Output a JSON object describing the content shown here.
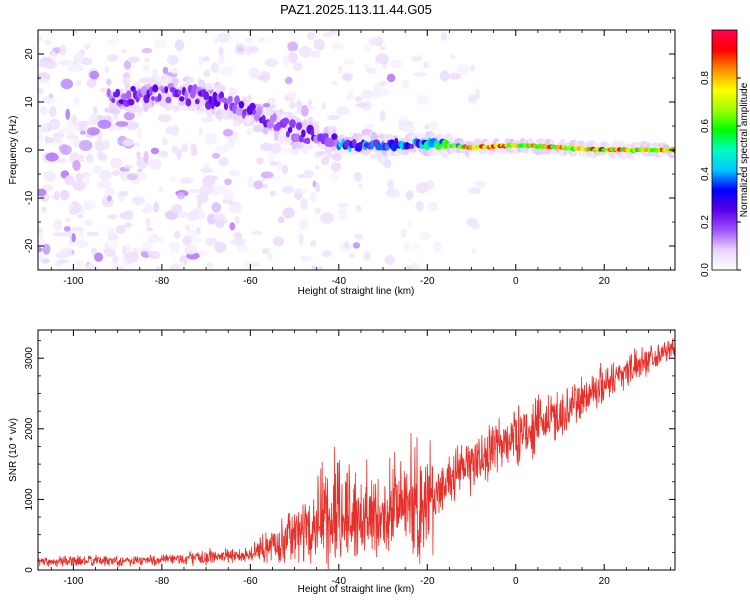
{
  "figure": {
    "title": "PAZ1.2025.113.11.44.G05"
  },
  "chart_data": [
    {
      "type": "heatmap",
      "xlabel": "Height of straight line (km)",
      "ylabel": "Frequency (Hz)",
      "xlim": [
        -108,
        36
      ],
      "ylim": [
        -25,
        25
      ],
      "xticks": [
        -100,
        -80,
        -60,
        -40,
        -20,
        0,
        20
      ],
      "yticks": [
        -20,
        -10,
        0,
        10,
        20
      ],
      "colorbar": {
        "label": "Normalized spectral amplitude",
        "range": [
          0,
          1
        ],
        "ticks": [
          0.0,
          0.2,
          0.4,
          0.6,
          0.8
        ],
        "colormap": [
          "#ffffff",
          "#e8d4fb",
          "#a050ff",
          "#5a00e6",
          "#0000ff",
          "#00c8ff",
          "#00ffc0",
          "#00ff00",
          "#a0ff00",
          "#ffff00",
          "#ff9000",
          "#ff0000",
          "#ff0050"
        ]
      },
      "features": {
        "description_note_omitted": true,
        "tone_ridge": [
          {
            "x": -90,
            "f": 11
          },
          {
            "x": -80,
            "f": 12
          },
          {
            "x": -70,
            "f": 11
          },
          {
            "x": -60,
            "f": 8
          },
          {
            "x": -50,
            "f": 4
          },
          {
            "x": -40,
            "f": 1
          },
          {
            "x": -30,
            "f": 1
          },
          {
            "x": -20,
            "f": 1.5
          },
          {
            "x": -10,
            "f": 0.5
          },
          {
            "x": 0,
            "f": 1
          },
          {
            "x": 10,
            "f": 0.5
          },
          {
            "x": 20,
            "f": 0
          },
          {
            "x": 36,
            "f": 0
          }
        ]
      }
    },
    {
      "type": "line",
      "xlabel": "Height of straight line (km)",
      "ylabel": "SNR (10 * v/v)",
      "xlim": [
        -108,
        36
      ],
      "ylim": [
        0,
        3400
      ],
      "xticks": [
        -100,
        -80,
        -60,
        -40,
        -20,
        0,
        20
      ],
      "yticks": [
        0,
        1000,
        2000,
        3000
      ],
      "color": "#e8302a",
      "envelope": [
        {
          "x": -108,
          "mean": 120,
          "amp": 90
        },
        {
          "x": -80,
          "mean": 140,
          "amp": 100
        },
        {
          "x": -60,
          "mean": 220,
          "amp": 150
        },
        {
          "x": -50,
          "mean": 500,
          "amp": 450
        },
        {
          "x": -40,
          "mean": 700,
          "amp": 800
        },
        {
          "x": -30,
          "mean": 750,
          "amp": 700
        },
        {
          "x": -25,
          "mean": 900,
          "amp": 800
        },
        {
          "x": -20,
          "mean": 700,
          "amp": 900
        },
        {
          "x": -17,
          "mean": 1200,
          "amp": 400
        },
        {
          "x": -10,
          "mean": 1500,
          "amp": 500
        },
        {
          "x": 0,
          "mean": 1900,
          "amp": 500
        },
        {
          "x": 10,
          "mean": 2200,
          "amp": 450
        },
        {
          "x": 20,
          "mean": 2650,
          "amp": 350
        },
        {
          "x": 30,
          "mean": 3000,
          "amp": 250
        },
        {
          "x": 36,
          "mean": 3150,
          "amp": 150
        }
      ]
    }
  ]
}
